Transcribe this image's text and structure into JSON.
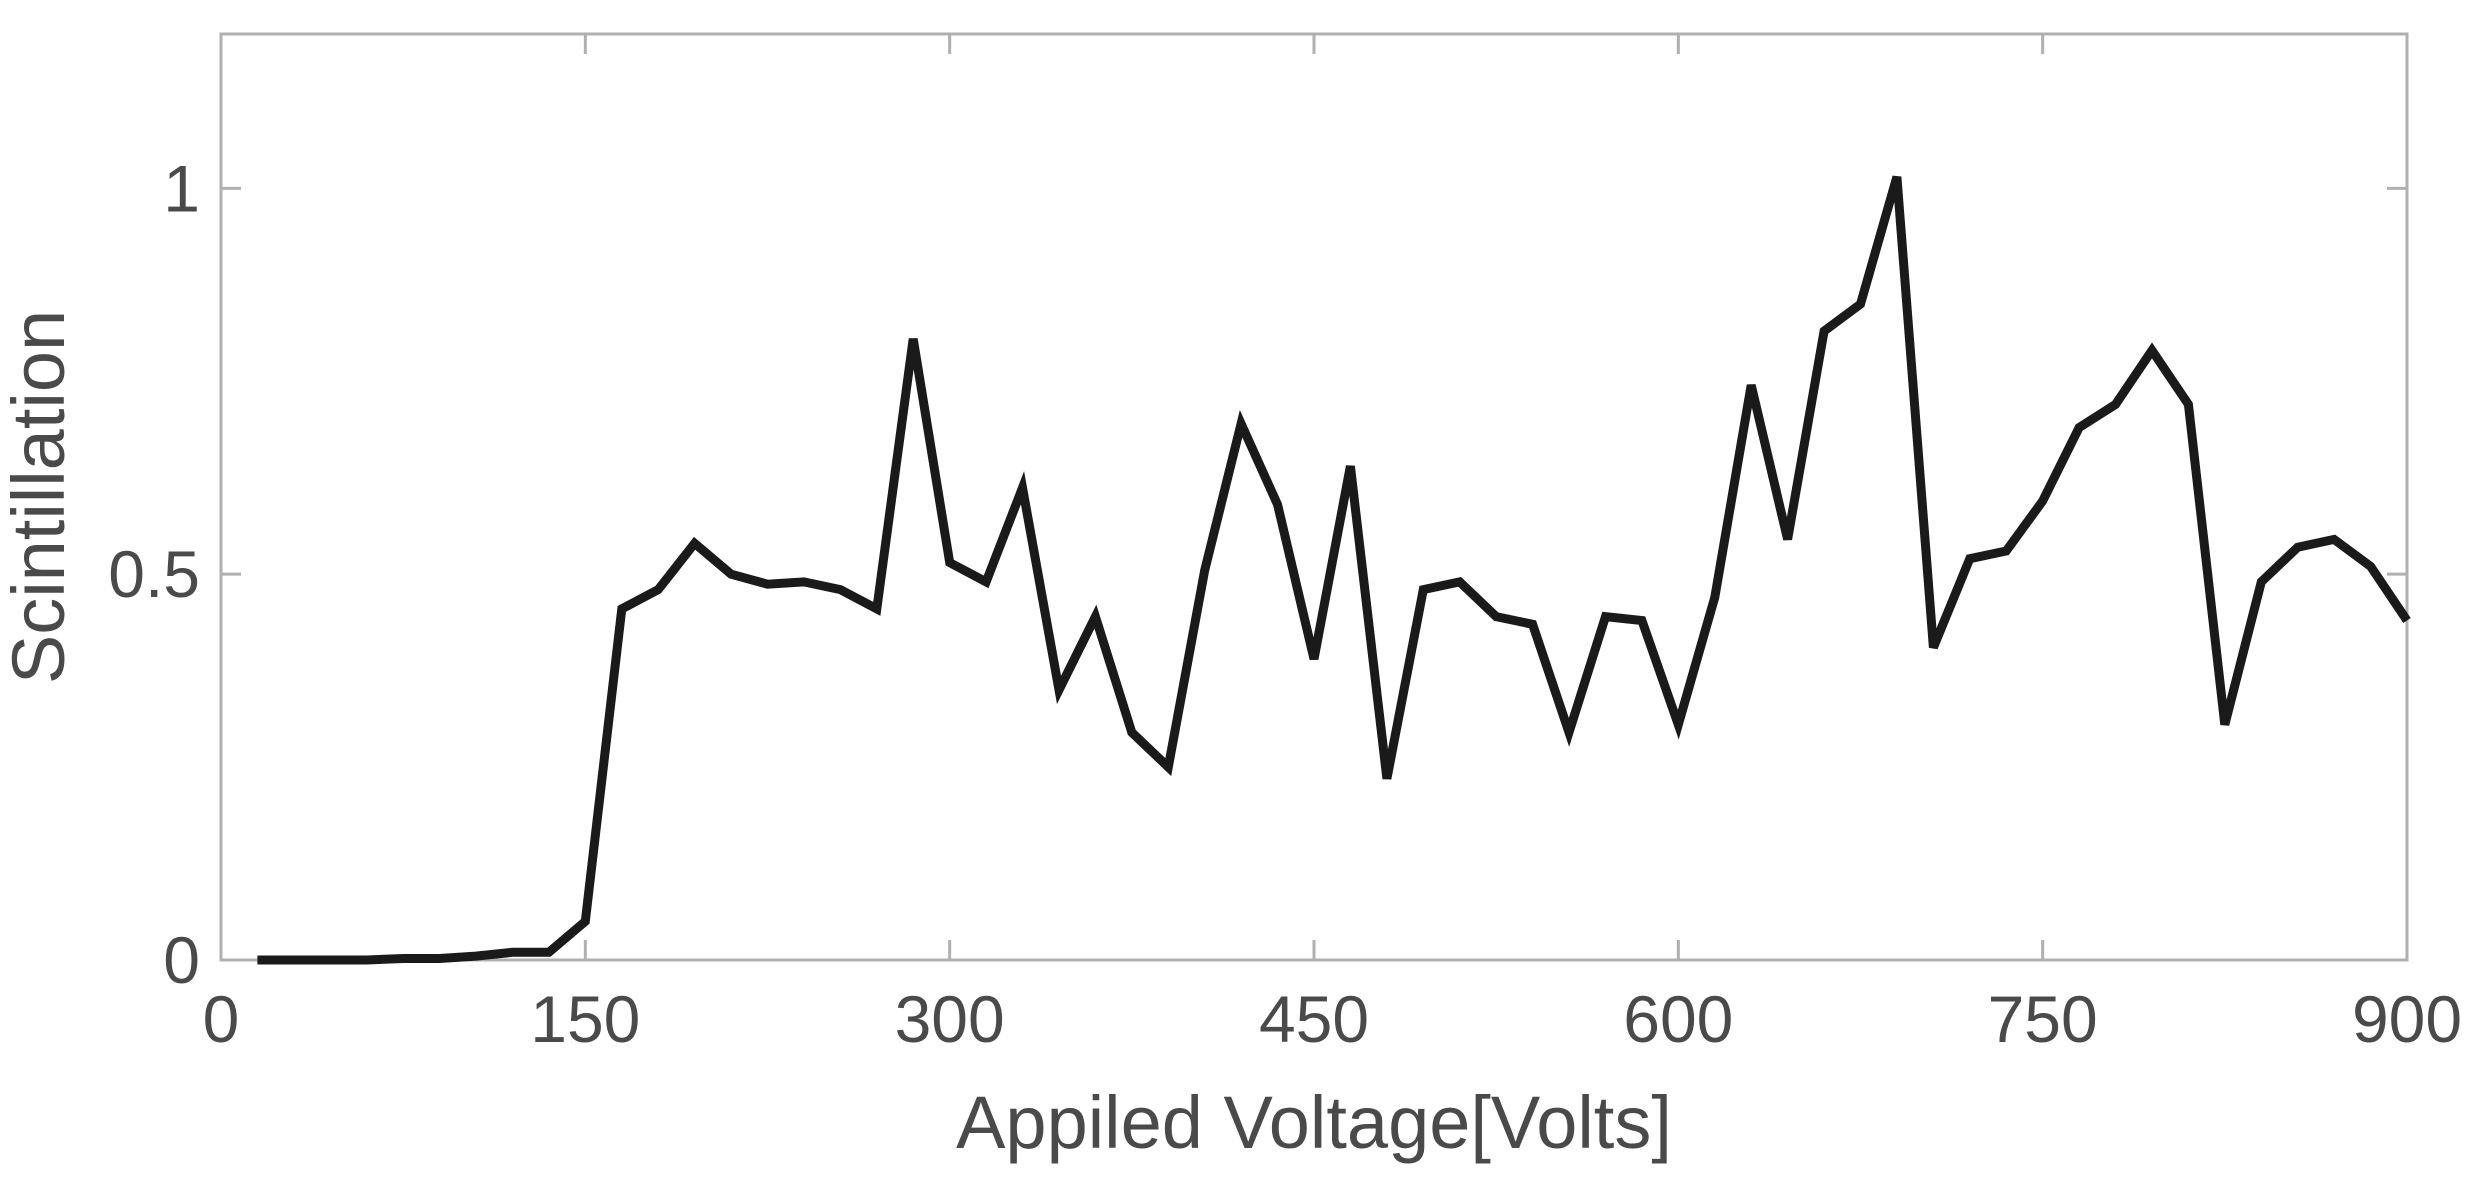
{
  "chart_data": {
    "type": "line",
    "title": "",
    "xlabel": "Appiled Voltage[Volts]",
    "ylabel": "Scintillation",
    "xlim": [
      0,
      900
    ],
    "ylim": [
      0,
      1.2
    ],
    "xticks": [
      0,
      150,
      300,
      450,
      600,
      750,
      900
    ],
    "xtick_labels": [
      "0",
      "150",
      "300",
      "450",
      "600",
      "750",
      "900"
    ],
    "yticks": [
      0,
      0.5,
      1
    ],
    "ytick_labels": [
      "0",
      "0.5",
      "1"
    ],
    "grid": false,
    "legend": "none",
    "line_color": "#1a1a1a",
    "axes_color": "#b0b0b0",
    "text_color": "#4a4a4a",
    "series": [
      {
        "x": [
          15,
          30,
          45,
          60,
          75,
          90,
          105,
          120,
          135,
          150,
          165,
          180,
          195,
          210,
          225,
          240,
          255,
          270,
          285,
          300,
          315,
          330,
          345,
          360,
          375,
          390,
          405,
          420,
          435,
          450,
          465,
          480,
          495,
          510,
          525,
          540,
          555,
          570,
          585,
          600,
          615,
          630,
          645,
          660,
          675,
          690,
          705,
          720,
          735,
          750,
          765,
          780,
          795,
          810,
          825,
          840,
          855,
          870,
          885,
          900
        ],
        "values": [
          0,
          0,
          0,
          0,
          0.002,
          0.002,
          0.005,
          0.01,
          0.01,
          0.05,
          0.455,
          0.48,
          0.54,
          0.5,
          0.487,
          0.49,
          0.48,
          0.455,
          0.805,
          0.515,
          0.49,
          0.612,
          0.35,
          0.445,
          0.295,
          0.25,
          0.505,
          0.695,
          0.59,
          0.39,
          0.64,
          0.235,
          0.48,
          0.49,
          0.445,
          0.435,
          0.295,
          0.445,
          0.44,
          0.305,
          0.47,
          0.745,
          0.545,
          0.815,
          0.85,
          1.015,
          0.405,
          0.52,
          0.53,
          0.595,
          0.69,
          0.72,
          0.79,
          0.72,
          0.305,
          0.49,
          0.535,
          0.545,
          0.51,
          0.44
        ]
      }
    ]
  }
}
